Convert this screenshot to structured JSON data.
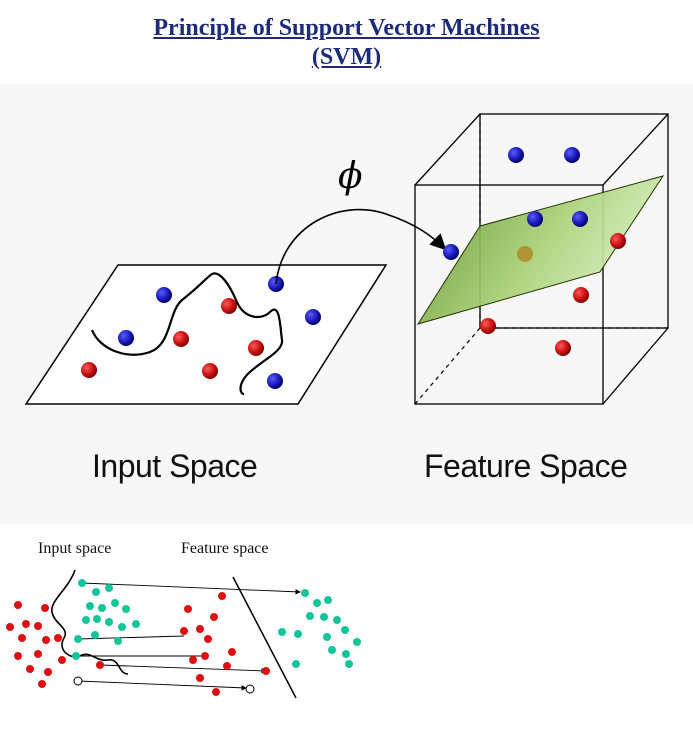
{
  "title": {
    "line1": "Principle of Support Vector Machines",
    "line2": "(SVM)"
  },
  "top_diagram": {
    "mapping_symbol": "ϕ",
    "input_label": "Input Space",
    "feature_label": "Feature Space",
    "colors": {
      "class_a": "#cc1111",
      "class_b": "#1a1ab8",
      "hyperplane": "#9fc86a"
    }
  },
  "bottom_diagram": {
    "input_label": "Input space",
    "feature_label": "Feature space",
    "colors": {
      "class_a": "#dd1111",
      "class_b": "#16c49a"
    }
  }
}
